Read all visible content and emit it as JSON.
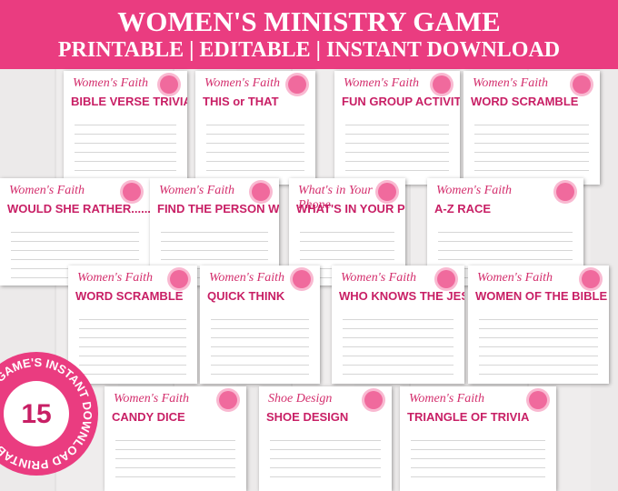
{
  "header": {
    "title": "WOMEN'S MINISTRY GAME",
    "subtitle": "PRINTABLE | EDITABLE | INSTANT DOWNLOAD"
  },
  "cards": [
    {
      "brand": "Women's Faith",
      "title": "BIBLE VERSE TRIVIA"
    },
    {
      "brand": "Women's Faith",
      "title": "THIS or THAT"
    },
    {
      "brand": "Women's Faith",
      "title": "FUN GROUP ACTIVITIES"
    },
    {
      "brand": "Women's Faith",
      "title": "WORD SCRAMBLE"
    },
    {
      "brand": "Women's Faith",
      "title": "WOULD SHE RATHER......"
    },
    {
      "brand": "Women's Faith",
      "title": "FIND THE PERSON WHO..."
    },
    {
      "brand": "What's in Your Phone",
      "title": "WHAT'S IN YOUR PHONE"
    },
    {
      "brand": "Women's Faith",
      "title": "A-Z RACE"
    },
    {
      "brand": "Women's Faith",
      "title": "WORD SCRAMBLE"
    },
    {
      "brand": "Women's Faith",
      "title": "QUICK THINK"
    },
    {
      "brand": "Women's Faith",
      "title": "WHO KNOWS THE JESUS BEST"
    },
    {
      "brand": "Women's Faith",
      "title": "WOMEN OF THE BIBLE"
    },
    {
      "brand": "Women's Faith",
      "title": "CANDY DICE"
    },
    {
      "brand": "Shoe Design",
      "title": "SHOE DESIGN"
    },
    {
      "brand": "Women's Faith",
      "title": "TRIANGLE OF TRIVIA"
    }
  ],
  "badge": {
    "number": "15",
    "text": "FUN GAME'S INSTANT DOWNLOAD PRINTABLE"
  }
}
